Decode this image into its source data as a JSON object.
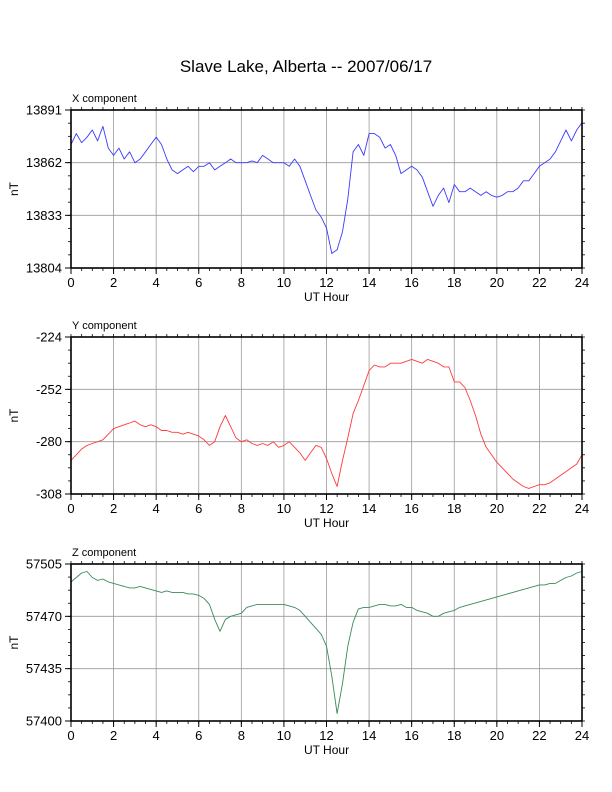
{
  "title": "Slave Lake, Alberta -- 2007/06/17",
  "chart_data": [
    {
      "type": "line",
      "title": "X component",
      "xlabel": "UT Hour",
      "ylabel": "nT",
      "xlim": [
        0,
        24
      ],
      "ylim": [
        13804,
        13891
      ],
      "xticks": [
        0,
        2,
        4,
        6,
        8,
        10,
        12,
        14,
        16,
        18,
        20,
        22,
        24
      ],
      "yticks": [
        13804,
        13833,
        13862,
        13891
      ],
      "grid": true,
      "series": [
        {
          "color": "#3b3bff",
          "x": [
            0,
            0.25,
            0.5,
            0.75,
            1.0,
            1.25,
            1.5,
            1.75,
            2.0,
            2.25,
            2.5,
            2.75,
            3.0,
            3.25,
            3.5,
            3.75,
            4.0,
            4.25,
            4.5,
            4.75,
            5.0,
            5.25,
            5.5,
            5.75,
            6.0,
            6.25,
            6.5,
            6.75,
            7.0,
            7.25,
            7.5,
            7.75,
            8.0,
            8.25,
            8.5,
            8.75,
            9.0,
            9.25,
            9.5,
            9.75,
            10.0,
            10.25,
            10.5,
            10.75,
            11.0,
            11.25,
            11.5,
            11.75,
            12.0,
            12.25,
            12.5,
            12.75,
            13.0,
            13.25,
            13.5,
            13.75,
            14.0,
            14.25,
            14.5,
            14.75,
            15.0,
            15.25,
            15.5,
            15.75,
            16.0,
            16.25,
            16.5,
            16.75,
            17.0,
            17.25,
            17.5,
            17.75,
            18.0,
            18.25,
            18.5,
            18.75,
            19.0,
            19.25,
            19.5,
            19.75,
            20.0,
            20.25,
            20.5,
            20.75,
            21.0,
            21.25,
            21.5,
            21.75,
            22.0,
            22.25,
            22.5,
            22.75,
            23.0,
            23.25,
            23.5,
            23.75,
            24.0
          ],
          "values": [
            13872,
            13878,
            13873,
            13876,
            13880,
            13874,
            13882,
            13870,
            13866,
            13870,
            13864,
            13868,
            13862,
            13864,
            13868,
            13872,
            13876,
            13872,
            13864,
            13858,
            13856,
            13858,
            13860,
            13857,
            13860,
            13860,
            13862,
            13858,
            13860,
            13862,
            13864,
            13862,
            13862,
            13862,
            13863,
            13862,
            13866,
            13864,
            13862,
            13862,
            13862,
            13860,
            13864,
            13860,
            13852,
            13844,
            13836,
            13832,
            13826,
            13812,
            13814,
            13824,
            13842,
            13868,
            13872,
            13866,
            13878,
            13878,
            13876,
            13870,
            13872,
            13866,
            13856,
            13858,
            13860,
            13858,
            13854,
            13846,
            13838,
            13844,
            13848,
            13840,
            13850,
            13846,
            13846,
            13848,
            13846,
            13844,
            13846,
            13844,
            13843,
            13844,
            13846,
            13846,
            13848,
            13852,
            13852,
            13856,
            13860,
            13862,
            13864,
            13868,
            13874,
            13880,
            13874,
            13880,
            13884
          ]
        }
      ]
    },
    {
      "type": "line",
      "title": "Y component",
      "xlabel": "UT Hour",
      "ylabel": "nT",
      "xlim": [
        0,
        24
      ],
      "ylim": [
        -308,
        -224
      ],
      "xticks": [
        0,
        2,
        4,
        6,
        8,
        10,
        12,
        14,
        16,
        18,
        20,
        22,
        24
      ],
      "yticks": [
        -224,
        -252,
        -280,
        -308
      ],
      "grid": true,
      "series": [
        {
          "color": "#ff3b3b",
          "x": [
            0,
            0.25,
            0.5,
            0.75,
            1.0,
            1.25,
            1.5,
            1.75,
            2.0,
            2.25,
            2.5,
            2.75,
            3.0,
            3.25,
            3.5,
            3.75,
            4.0,
            4.25,
            4.5,
            4.75,
            5.0,
            5.25,
            5.5,
            5.75,
            6.0,
            6.25,
            6.5,
            6.75,
            7.0,
            7.25,
            7.5,
            7.75,
            8.0,
            8.25,
            8.5,
            8.75,
            9.0,
            9.25,
            9.5,
            9.75,
            10.0,
            10.25,
            10.5,
            10.75,
            11.0,
            11.25,
            11.5,
            11.75,
            12.0,
            12.25,
            12.5,
            12.75,
            13.0,
            13.25,
            13.5,
            13.75,
            14.0,
            14.25,
            14.5,
            14.75,
            15.0,
            15.25,
            15.5,
            15.75,
            16.0,
            16.25,
            16.5,
            16.75,
            17.0,
            17.25,
            17.5,
            17.75,
            18.0,
            18.25,
            18.5,
            18.75,
            19.0,
            19.25,
            19.5,
            19.75,
            20.0,
            20.25,
            20.5,
            20.75,
            21.0,
            21.25,
            21.5,
            21.75,
            22.0,
            22.25,
            22.5,
            22.75,
            23.0,
            23.25,
            23.5,
            23.75,
            24.0
          ],
          "values": [
            -290,
            -287,
            -284,
            -282,
            -281,
            -280,
            -279,
            -276,
            -273,
            -272,
            -271,
            -270,
            -269,
            -271,
            -272,
            -271,
            -272,
            -274,
            -274,
            -275,
            -275,
            -276,
            -275,
            -276,
            -277,
            -279,
            -282,
            -280,
            -272,
            -266,
            -272,
            -278,
            -280,
            -279,
            -281,
            -282,
            -281,
            -282,
            -280,
            -283,
            -282,
            -280,
            -283,
            -286,
            -290,
            -286,
            -282,
            -283,
            -289,
            -297,
            -304,
            -290,
            -278,
            -265,
            -258,
            -250,
            -242,
            -239,
            -240,
            -240,
            -238,
            -238,
            -238,
            -237,
            -236,
            -237,
            -238,
            -236,
            -237,
            -238,
            -240,
            -240,
            -248,
            -248,
            -251,
            -258,
            -266,
            -276,
            -283,
            -287,
            -291,
            -294,
            -297,
            -300,
            -302,
            -304,
            -305,
            -304,
            -303,
            -303,
            -302,
            -300,
            -298,
            -296,
            -294,
            -292,
            -287
          ]
        }
      ]
    },
    {
      "type": "line",
      "title": "Z component",
      "xlabel": "UT Hour",
      "ylabel": "nT",
      "xlim": [
        0,
        24
      ],
      "ylim": [
        57400,
        57505
      ],
      "xticks": [
        0,
        2,
        4,
        6,
        8,
        10,
        12,
        14,
        16,
        18,
        20,
        22,
        24
      ],
      "yticks": [
        57400,
        57435,
        57470,
        57505
      ],
      "grid": true,
      "series": [
        {
          "color": "#3a8a5a",
          "x": [
            0,
            0.25,
            0.5,
            0.75,
            1.0,
            1.25,
            1.5,
            1.75,
            2.0,
            2.25,
            2.5,
            2.75,
            3.0,
            3.25,
            3.5,
            3.75,
            4.0,
            4.25,
            4.5,
            4.75,
            5.0,
            5.25,
            5.5,
            5.75,
            6.0,
            6.25,
            6.5,
            6.75,
            7.0,
            7.25,
            7.5,
            7.75,
            8.0,
            8.25,
            8.5,
            8.75,
            9.0,
            9.25,
            9.5,
            9.75,
            10.0,
            10.25,
            10.5,
            10.75,
            11.0,
            11.25,
            11.5,
            11.75,
            12.0,
            12.25,
            12.5,
            12.75,
            13.0,
            13.25,
            13.5,
            13.75,
            14.0,
            14.25,
            14.5,
            14.75,
            15.0,
            15.25,
            15.5,
            15.75,
            16.0,
            16.25,
            16.5,
            16.75,
            17.0,
            17.25,
            17.5,
            17.75,
            18.0,
            18.25,
            18.5,
            18.75,
            19.0,
            19.25,
            19.5,
            19.75,
            20.0,
            20.25,
            20.5,
            20.75,
            21.0,
            21.25,
            21.5,
            21.75,
            22.0,
            22.25,
            22.5,
            22.75,
            23.0,
            23.25,
            23.5,
            23.75,
            24.0
          ],
          "values": [
            57493,
            57496,
            57499,
            57500,
            57496,
            57494,
            57495,
            57493,
            57492,
            57491,
            57490,
            57489,
            57489,
            57490,
            57489,
            57488,
            57487,
            57486,
            57487,
            57486,
            57486,
            57486,
            57485,
            57485,
            57484,
            57482,
            57478,
            57468,
            57460,
            57468,
            57470,
            57471,
            57472,
            57476,
            57477,
            57478,
            57478,
            57478,
            57478,
            57478,
            57478,
            57477,
            57476,
            57474,
            57470,
            57466,
            57462,
            57458,
            57450,
            57430,
            57405,
            57425,
            57450,
            57466,
            57475,
            57476,
            57476,
            57477,
            57478,
            57478,
            57477,
            57477,
            57478,
            57476,
            57476,
            57474,
            57473,
            57472,
            57470,
            57470,
            57472,
            57473,
            57474,
            57476,
            57477,
            57478,
            57479,
            57480,
            57481,
            57482,
            57483,
            57484,
            57485,
            57486,
            57487,
            57488,
            57489,
            57490,
            57491,
            57491,
            57492,
            57492,
            57494,
            57496,
            57497,
            57499,
            57500
          ]
        }
      ]
    }
  ]
}
